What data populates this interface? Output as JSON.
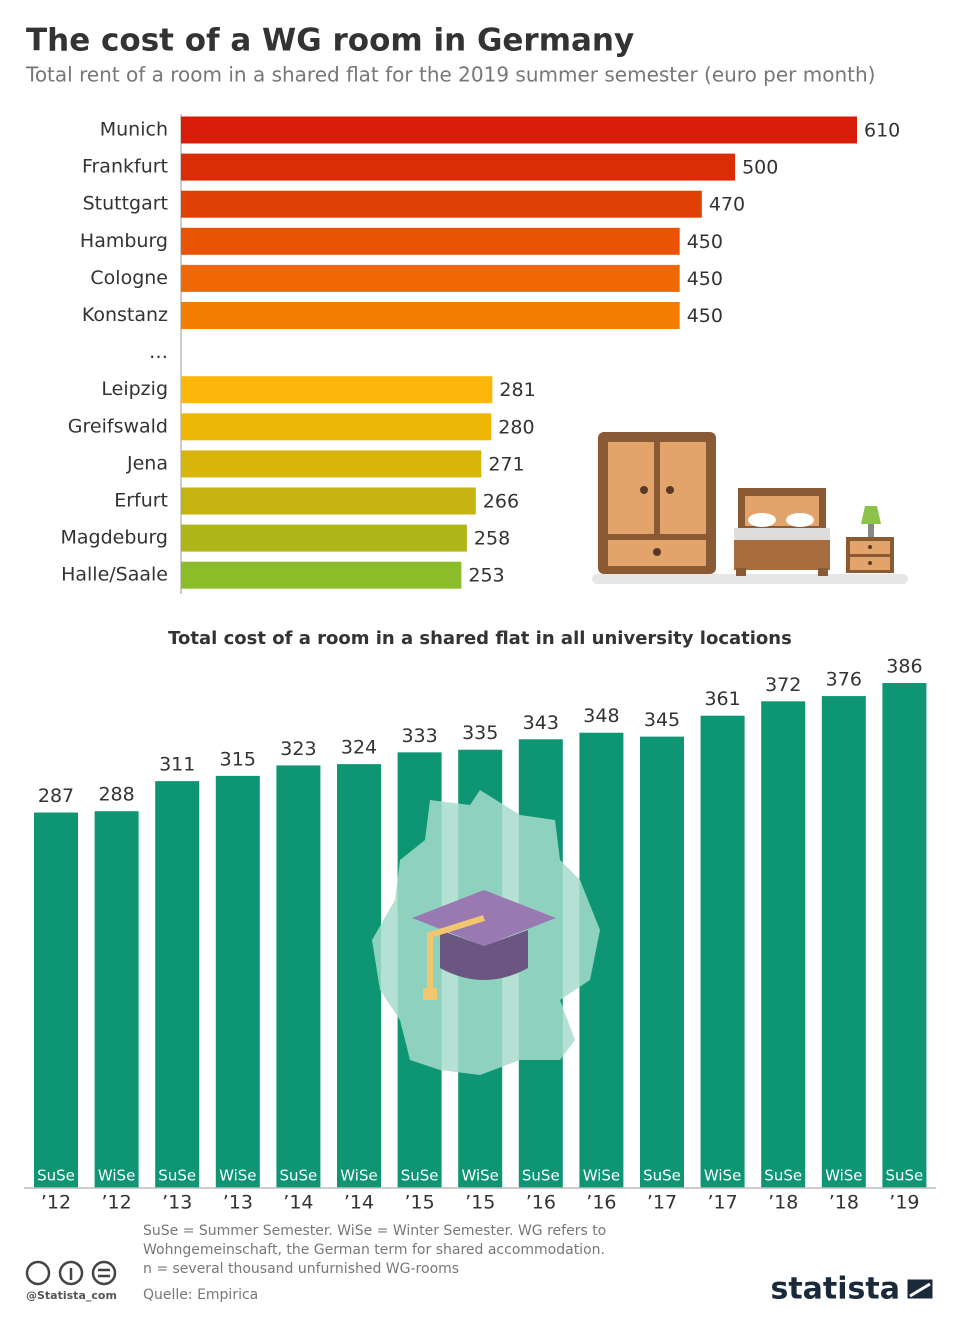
{
  "title": "The cost of a WG room in Germany",
  "subtitle": "Total rent of a room in a shared flat for the 2019 summer semester (euro per month)",
  "chart_data": [
    {
      "type": "bar",
      "orientation": "horizontal",
      "categories": [
        "Munich",
        "Frankfurt",
        "Stuttgart",
        "Hamburg",
        "Cologne",
        "Konstanz",
        "…",
        "Leipzig",
        "Greifswald",
        "Jena",
        "Erfurt",
        "Magdeburg",
        "Halle/Saale"
      ],
      "values": [
        610,
        500,
        470,
        450,
        450,
        450,
        null,
        281,
        280,
        271,
        266,
        258,
        253
      ],
      "colors": [
        "#d91c0a",
        "#dc2e06",
        "#e14004",
        "#e85304",
        "#ef6803",
        "#f47c00",
        null,
        "#fdb60a",
        "#eeb705",
        "#d8b50a",
        "#c5b312",
        "#b0b51a",
        "#8bbd2a"
      ]
    },
    {
      "type": "bar",
      "orientation": "vertical",
      "title": "Total cost of a room in a shared flat in all university locations",
      "categories": [
        "’12",
        "’12",
        "’13",
        "’13",
        "’14",
        "’14",
        "’15",
        "’15",
        "’16",
        "’16",
        "’17",
        "’17",
        "’18",
        "’18",
        "’19"
      ],
      "semesters": [
        "SuSe",
        "WiSe",
        "SuSe",
        "WiSe",
        "SuSe",
        "WiSe",
        "SuSe",
        "WiSe",
        "SuSe",
        "WiSe",
        "SuSe",
        "WiSe",
        "SuSe",
        "WiSe",
        "SuSe"
      ],
      "values": [
        287,
        288,
        311,
        315,
        323,
        324,
        333,
        335,
        343,
        348,
        345,
        361,
        372,
        376,
        386
      ],
      "color": "#0d9574"
    }
  ],
  "notes": [
    "SuSe = Summer Semester. WiSe = Winter Semester. WG refers to",
    "Wohngemeinschaft, the German term for shared accommodation.",
    "n = several thousand unfurnished WG-rooms"
  ],
  "source": "Quelle: Empirica",
  "handle": "@Statista_com",
  "brand": "statista"
}
